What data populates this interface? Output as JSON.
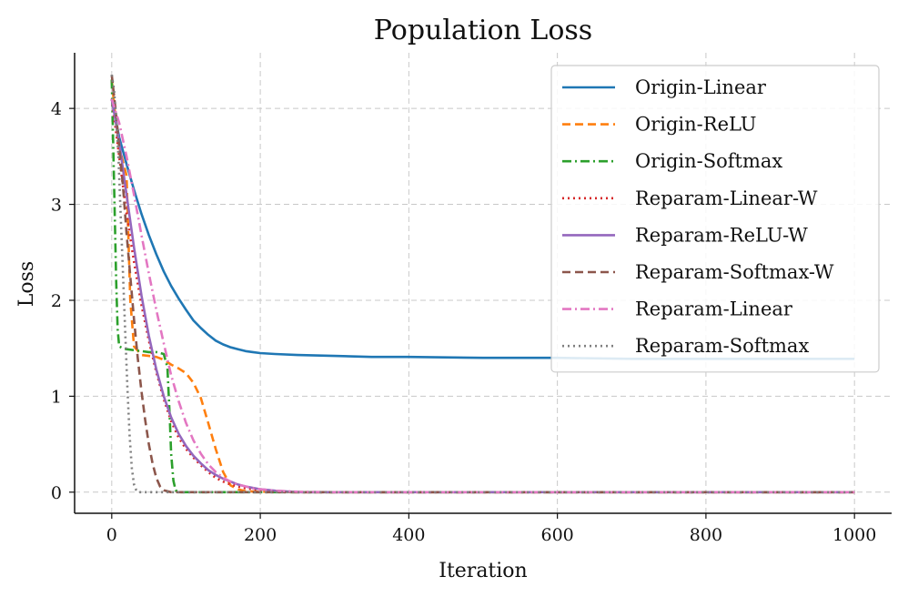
{
  "chart_data": {
    "type": "line",
    "title": "Population Loss",
    "xlabel": "Iteration",
    "ylabel": "Loss",
    "xlim": [
      -50,
      1050
    ],
    "ylim": [
      -0.22,
      4.58
    ],
    "xticks": [
      0,
      200,
      400,
      600,
      800,
      1000
    ],
    "yticks": [
      0,
      1,
      2,
      3,
      4
    ],
    "grid": true,
    "legend_position": "top-right",
    "series": [
      {
        "name": "Origin-Linear",
        "color": "#1f77b4",
        "style": "solid",
        "x": [
          0,
          10,
          20,
          30,
          40,
          50,
          60,
          70,
          80,
          90,
          100,
          110,
          120,
          130,
          140,
          150,
          160,
          170,
          180,
          190,
          200,
          220,
          250,
          300,
          350,
          400,
          500,
          600,
          700,
          800,
          900,
          1000
        ],
        "y": [
          4.1,
          3.7,
          3.42,
          3.15,
          2.9,
          2.68,
          2.48,
          2.3,
          2.15,
          2.02,
          1.9,
          1.79,
          1.71,
          1.64,
          1.58,
          1.54,
          1.51,
          1.49,
          1.47,
          1.46,
          1.45,
          1.44,
          1.43,
          1.42,
          1.41,
          1.41,
          1.4,
          1.4,
          1.39,
          1.39,
          1.39,
          1.39
        ]
      },
      {
        "name": "Origin-ReLU",
        "color": "#ff7f0e",
        "style": "dashed",
        "x": [
          0,
          5,
          10,
          20,
          25,
          30,
          40,
          50,
          60,
          70,
          80,
          90,
          100,
          110,
          120,
          130,
          140,
          150,
          160,
          170,
          180,
          200,
          250,
          300,
          400,
          600,
          800,
          1000
        ],
        "y": [
          4.3,
          3.9,
          3.6,
          3.3,
          2.0,
          1.52,
          1.43,
          1.42,
          1.41,
          1.38,
          1.33,
          1.29,
          1.24,
          1.14,
          0.98,
          0.72,
          0.45,
          0.21,
          0.07,
          0.03,
          0.01,
          0.005,
          0.0,
          0.0,
          0.0,
          0.0,
          0.0,
          0.0
        ]
      },
      {
        "name": "Origin-Softmax",
        "color": "#2ca02c",
        "style": "dashdot",
        "x": [
          0,
          2,
          4,
          6,
          8,
          10,
          15,
          20,
          30,
          40,
          50,
          60,
          70,
          75,
          78,
          80,
          83,
          86,
          90,
          100,
          200,
          400,
          600,
          800,
          1000
        ],
        "y": [
          4.3,
          3.6,
          2.9,
          2.2,
          1.7,
          1.52,
          1.5,
          1.49,
          1.48,
          1.47,
          1.46,
          1.46,
          1.44,
          1.3,
          0.8,
          0.4,
          0.12,
          0.02,
          0.0,
          0.0,
          0.0,
          0.0,
          0.0,
          0.0,
          0.0
        ]
      },
      {
        "name": "Reparam-Linear-W",
        "color": "#d62728",
        "style": "dotted",
        "x": [
          0,
          10,
          20,
          30,
          40,
          50,
          60,
          70,
          80,
          90,
          100,
          110,
          120,
          130,
          140,
          150,
          160,
          180,
          200,
          220,
          250,
          300,
          400,
          600,
          800,
          1000
        ],
        "y": [
          4.1,
          3.5,
          2.9,
          2.4,
          1.95,
          1.58,
          1.25,
          0.97,
          0.74,
          0.57,
          0.45,
          0.36,
          0.28,
          0.21,
          0.15,
          0.11,
          0.08,
          0.04,
          0.02,
          0.01,
          0.0,
          0.0,
          0.0,
          0.0,
          0.0,
          0.0
        ]
      },
      {
        "name": "Reparam-ReLU-W",
        "color": "#9467bd",
        "style": "solid",
        "x": [
          0,
          10,
          20,
          30,
          40,
          50,
          60,
          70,
          80,
          90,
          100,
          110,
          120,
          130,
          140,
          150,
          160,
          170,
          180,
          200,
          220,
          250,
          300,
          400,
          600,
          800,
          1000
        ],
        "y": [
          4.1,
          3.65,
          3.1,
          2.55,
          2.05,
          1.63,
          1.28,
          1.0,
          0.78,
          0.61,
          0.48,
          0.38,
          0.3,
          0.23,
          0.18,
          0.14,
          0.11,
          0.08,
          0.06,
          0.03,
          0.015,
          0.0,
          0.0,
          0.0,
          0.0,
          0.0,
          0.0
        ]
      },
      {
        "name": "Reparam-Softmax-W",
        "color": "#8c564b",
        "style": "dashed",
        "x": [
          0,
          5,
          10,
          15,
          20,
          25,
          30,
          35,
          40,
          45,
          50,
          55,
          60,
          65,
          70,
          75,
          80,
          100,
          200,
          400,
          600,
          800,
          1000
        ],
        "y": [
          4.35,
          4.0,
          3.6,
          3.2,
          2.7,
          2.25,
          1.8,
          1.4,
          1.05,
          0.75,
          0.5,
          0.3,
          0.15,
          0.06,
          0.02,
          0.01,
          0.0,
          0.0,
          0.0,
          0.0,
          0.0,
          0.0,
          0.0
        ]
      },
      {
        "name": "Reparam-Linear",
        "color": "#e377c2",
        "style": "dashdot",
        "x": [
          0,
          10,
          20,
          30,
          40,
          50,
          60,
          70,
          80,
          90,
          100,
          110,
          120,
          130,
          140,
          150,
          160,
          170,
          180,
          190,
          200,
          220,
          250,
          300,
          400,
          600,
          800,
          1000
        ],
        "y": [
          4.1,
          3.85,
          3.5,
          3.1,
          2.68,
          2.28,
          1.9,
          1.55,
          1.22,
          0.95,
          0.72,
          0.54,
          0.4,
          0.29,
          0.21,
          0.15,
          0.11,
          0.08,
          0.06,
          0.04,
          0.03,
          0.015,
          0.005,
          0.0,
          0.0,
          0.0,
          0.0,
          0.0
        ]
      },
      {
        "name": "Reparam-Softmax",
        "color": "#7f7f7f",
        "style": "dotted",
        "x": [
          0,
          3,
          6,
          9,
          12,
          15,
          18,
          21,
          24,
          27,
          30,
          33,
          36,
          40,
          50,
          100,
          200,
          400,
          600,
          800,
          1000
        ],
        "y": [
          4.35,
          4.2,
          3.9,
          3.5,
          2.9,
          2.3,
          1.7,
          1.1,
          0.6,
          0.25,
          0.08,
          0.02,
          0.0,
          0.0,
          0.0,
          0.0,
          0.0,
          0.0,
          0.0,
          0.0,
          0.0
        ]
      }
    ]
  }
}
